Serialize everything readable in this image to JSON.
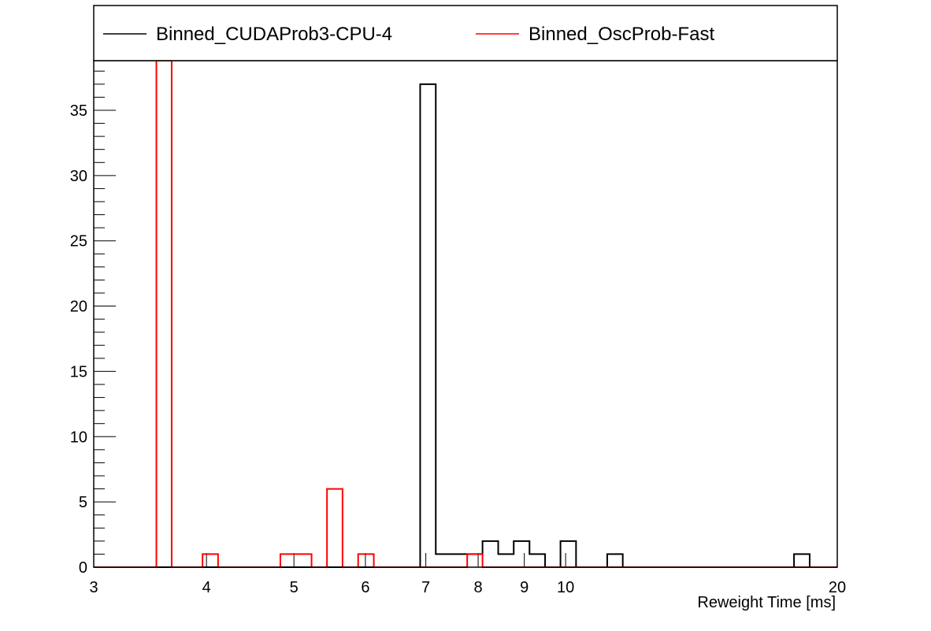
{
  "chart_data": {
    "type": "histogram",
    "x_scale": "log",
    "xlabel": "Reweight Time [ms]",
    "ylabel": "",
    "xlim": [
      3,
      20
    ],
    "ylim": [
      0,
      38.8
    ],
    "bin_edges": [
      3.0,
      3.12,
      3.25,
      3.38,
      3.52,
      3.66,
      3.81,
      3.96,
      4.12,
      4.29,
      4.46,
      4.64,
      4.83,
      5.02,
      5.23,
      5.44,
      5.66,
      5.89,
      6.13,
      6.38,
      6.64,
      6.9,
      7.18,
      7.47,
      7.78,
      8.09,
      8.42,
      8.76,
      9.12,
      9.49,
      9.87,
      10.27,
      10.69,
      11.12,
      11.57,
      12.04,
      12.53,
      13.04,
      13.56,
      14.11,
      14.69,
      15.28,
      15.9,
      16.55,
      17.22,
      17.91,
      18.64,
      19.39,
      20.0
    ],
    "x_ticks": [
      3,
      4,
      5,
      6,
      7,
      8,
      9,
      10,
      20
    ],
    "y_ticks": [
      0,
      5,
      10,
      15,
      20,
      25,
      30,
      35
    ],
    "y_minor_step": 1,
    "grid": false,
    "legend_position": "top",
    "series": [
      {
        "name": "Binned_CUDAProb3-CPU-4",
        "color": "#000000",
        "counts": [
          0,
          0,
          0,
          0,
          0,
          0,
          0,
          0,
          0,
          0,
          0,
          0,
          0,
          0,
          0,
          0,
          0,
          0,
          0,
          0,
          0,
          37,
          1,
          1,
          1,
          2,
          1,
          2,
          1,
          0,
          2,
          0,
          0,
          1,
          0,
          0,
          0,
          0,
          0,
          0,
          0,
          0,
          0,
          0,
          0,
          1,
          0,
          0
        ]
      },
      {
        "name": "Binned_OscProb-Fast",
        "color": "#ff0000",
        "counts": [
          0,
          0,
          0,
          0,
          39,
          0,
          0,
          1,
          0,
          0,
          0,
          0,
          1,
          1,
          0,
          6,
          0,
          1,
          0,
          0,
          0,
          0,
          0,
          0,
          1,
          0,
          0,
          0,
          0,
          0,
          0,
          0,
          0,
          0,
          0,
          0,
          0,
          0,
          0,
          0,
          0,
          0,
          0,
          0,
          0,
          0,
          0,
          0
        ]
      }
    ]
  }
}
